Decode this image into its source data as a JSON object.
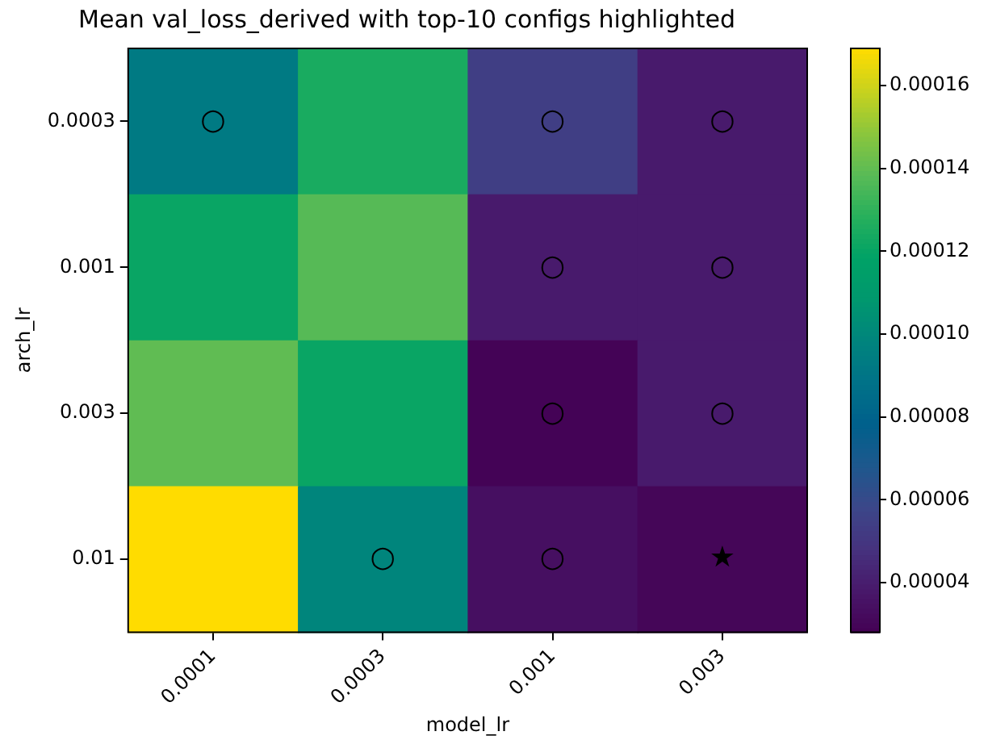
{
  "chart_data": {
    "type": "heatmap",
    "title": "Mean val_loss_derived with top-10 configs highlighted",
    "xlabel": "model_lr",
    "ylabel": "arch_lr",
    "categories": [
      "0.0001",
      "0.0003",
      "0.001",
      "0.003"
    ],
    "y_categories": [
      "0.0003",
      "0.001",
      "0.003",
      "0.01"
    ],
    "cells": [
      [
        9.3e-05,
        0.000125,
        5.4e-05,
        3.9e-05
      ],
      [
        0.000121,
        0.000138,
        3.9e-05,
        3.9e-05
      ],
      [
        0.00014,
        0.000121,
        2.9e-05,
        3.9e-05
      ],
      [
        0.000169,
        9.9e-05,
        3.4e-05,
        3e-05
      ]
    ],
    "cell_labels": [
      [
        "○",
        null,
        "○",
        "○"
      ],
      [
        null,
        null,
        "○",
        "○"
      ],
      [
        null,
        null,
        "○",
        "○"
      ],
      [
        null,
        "○",
        "○",
        "★"
      ]
    ],
    "clim": [
      2.8e-05,
      0.000169
    ],
    "cticks": [
      {
        "value": 4e-05,
        "label": "0.00004"
      },
      {
        "value": 6e-05,
        "label": "0.00006"
      },
      {
        "value": 8e-05,
        "label": "0.00008"
      },
      {
        "value": 0.0001,
        "label": "0.00010"
      },
      0.00012,
      0.00014,
      0.00016
    ]
  }
}
